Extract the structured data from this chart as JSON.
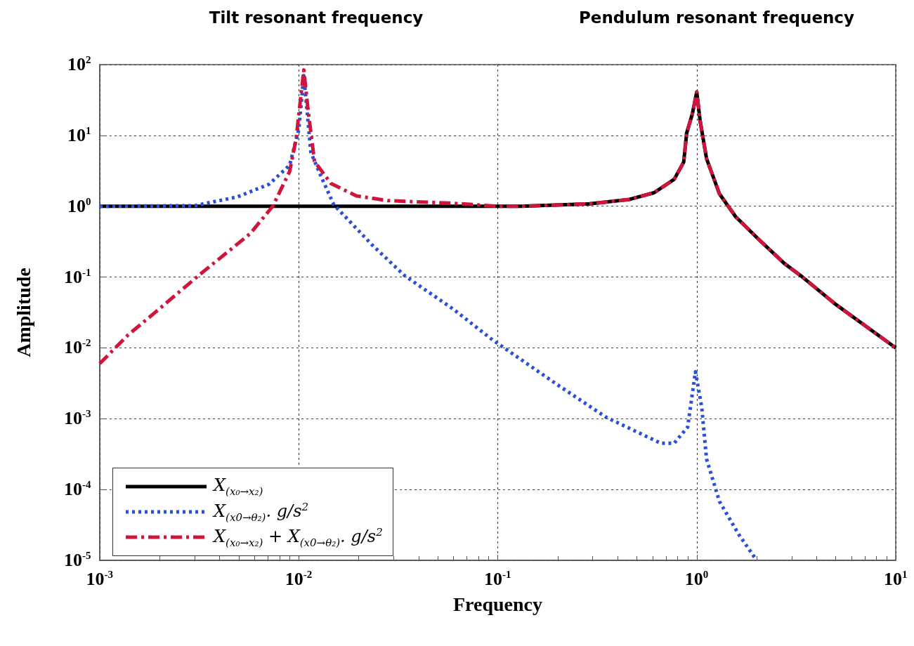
{
  "chart_data": {
    "type": "line",
    "xlabel": "Frequency",
    "ylabel": "Amplitude",
    "log": "xy",
    "grid": true,
    "legend": "bottom left",
    "marker": "none",
    "xlim": [
      0.001,
      10
    ],
    "ylim": [
      1e-05,
      100
    ],
    "xticks": [
      {
        "value": 0.001,
        "label": "10$^{-3}$"
      },
      {
        "value": 0.01,
        "label": "10$^{-2}$"
      },
      {
        "value": 0.1,
        "label": "10$^{-1}$"
      },
      {
        "value": 1,
        "label": "10$^{0}$"
      },
      {
        "value": 10,
        "label": "10$^{1}$"
      }
    ],
    "yticks": [
      {
        "value": 1e-05,
        "label": "10$^{-5}$"
      },
      {
        "value": 0.0001,
        "label": "10$^{-4}$"
      },
      {
        "value": 0.001,
        "label": "10$^{-3}$"
      },
      {
        "value": 0.01,
        "label": "10$^{-2}$"
      },
      {
        "value": 0.1,
        "label": "10$^{-1}$"
      },
      {
        "value": 1,
        "label": "10$^{0}$"
      },
      {
        "value": 10,
        "label": "10$^{1}$"
      },
      {
        "value": 100,
        "label": "10$^{2}$"
      }
    ],
    "annotations": [
      "Tilt resonant frequency",
      "Pendulum resonant frequency"
    ],
    "series": [
      {
        "name": "X$_{(x₀→x₂)}$",
        "color": "#000000",
        "line_style": "solid",
        "x": [
          0.001,
          0.01,
          0.1,
          0.13,
          0.29,
          0.46,
          0.61,
          0.77,
          0.86,
          0.89,
          0.95,
          1.0,
          1.04,
          1.12,
          1.3,
          1.57,
          2.05,
          2.76,
          3.4,
          5.0,
          10
        ],
        "values": [
          1,
          1,
          1,
          1,
          1.08,
          1.25,
          1.55,
          2.4,
          4.2,
          10.8,
          20,
          41,
          16,
          4.7,
          1.5,
          0.71,
          0.34,
          0.155,
          0.1,
          0.041,
          0.01
        ]
      },
      {
        "name": "X$_{(x0→θ₂)}$. g/s$^{2}$",
        "color": "#2a4fd8",
        "line_style": "dotted",
        "x": [
          0.001,
          0.003,
          0.0049,
          0.0071,
          0.009,
          0.01,
          0.0106,
          0.0115,
          0.0129,
          0.015,
          0.0235,
          0.034,
          0.06,
          0.094,
          0.105,
          0.2,
          0.35,
          0.66,
          0.77,
          0.9,
          0.985,
          1.06,
          1.12,
          1.3,
          1.63,
          2.0
        ],
        "values": [
          1,
          1.02,
          1.35,
          2.05,
          3.8,
          12,
          70,
          5.8,
          2.7,
          1.05,
          0.28,
          0.105,
          0.035,
          0.013,
          0.0105,
          0.003,
          0.00105,
          0.00045,
          0.00045,
          0.00076,
          0.0046,
          0.00144,
          0.00027,
          6.8e-05,
          2.3e-05,
          1e-05
        ]
      },
      {
        "name": "X$_{(x₀→x₂)}$ + X$_{(x0→θ₂)}$.  g/s$^{2}$",
        "color": "#d0143c",
        "line_style": "dashed",
        "x": [
          0.001,
          0.00138,
          0.00193,
          0.0032,
          0.0057,
          0.0074,
          0.009,
          0.0097,
          0.0106,
          0.0112,
          0.012,
          0.0145,
          0.0195,
          0.028,
          0.06,
          0.1,
          0.13,
          0.29,
          0.46,
          0.61,
          0.77,
          0.86,
          0.89,
          0.95,
          1.0,
          1.04,
          1.12,
          1.3,
          1.57,
          2.05,
          2.76,
          3.4,
          5.0,
          10
        ],
        "values": [
          0.006,
          0.015,
          0.033,
          0.11,
          0.41,
          1.0,
          3.1,
          9,
          84,
          20,
          4.3,
          2.1,
          1.4,
          1.2,
          1.1,
          1,
          1,
          1.08,
          1.25,
          1.55,
          2.4,
          4.2,
          10.8,
          20,
          41,
          16,
          4.7,
          1.5,
          0.71,
          0.34,
          0.155,
          0.1,
          0.041,
          0.01
        ]
      }
    ]
  }
}
